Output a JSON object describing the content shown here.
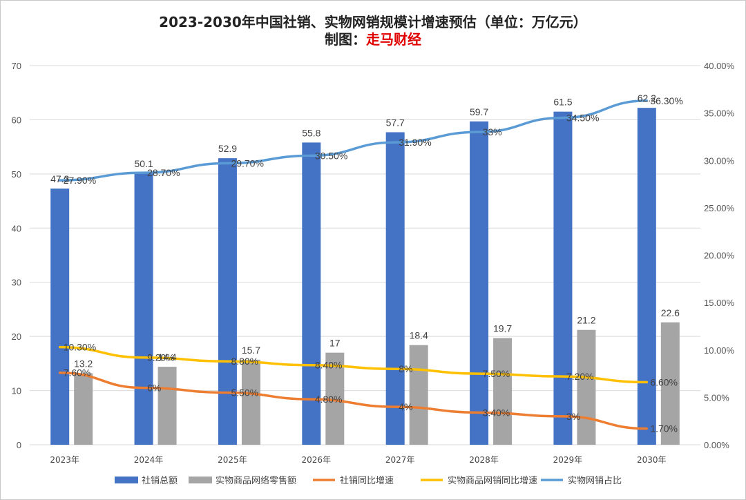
{
  "chart_data": {
    "type": "bar",
    "title": "2023-2030年中国社销、实物网销规模计增速预估（单位：万亿元）",
    "credit_prefix": "制图：",
    "credit_name": "走马财经",
    "categories": [
      "2023年",
      "2024年",
      "2025年",
      "2026年",
      "2027年",
      "2028年",
      "2029年",
      "2030年"
    ],
    "y_left": {
      "ylim": [
        0,
        70
      ],
      "ticks": [
        "0",
        "10",
        "20",
        "30",
        "40",
        "50",
        "60",
        "70"
      ]
    },
    "y_right": {
      "ylim": [
        0,
        40
      ],
      "ticks": [
        "0.00%",
        "5.00%",
        "10.00%",
        "15.00%",
        "20.00%",
        "25.00%",
        "30.00%",
        "35.00%",
        "40.00%"
      ]
    },
    "grid": true,
    "legend_position": "bottom",
    "series": [
      {
        "name": "社销总额",
        "type": "bar",
        "axis": "left",
        "color": "#4472c4",
        "values": [
          47.3,
          50.1,
          52.9,
          55.8,
          57.7,
          59.7,
          61.5,
          62.2
        ],
        "labels": [
          "47.3",
          "50.1",
          "52.9",
          "55.8",
          "57.7",
          "59.7",
          "61.5",
          "62.2"
        ]
      },
      {
        "name": "实物商品网络零售额",
        "type": "bar",
        "axis": "left",
        "color": "#a5a5a5",
        "values": [
          13.2,
          14.4,
          15.7,
          17,
          18.4,
          19.7,
          21.2,
          22.6
        ],
        "labels": [
          "13.2",
          "14.4",
          "15.7",
          "17",
          "18.4",
          "19.7",
          "21.2",
          "22.6"
        ]
      },
      {
        "name": "社销同比增速",
        "type": "line",
        "axis": "right",
        "color": "#ed7d31",
        "values": [
          7.6,
          6,
          5.5,
          4.8,
          4,
          3.4,
          3,
          1.7
        ],
        "labels": [
          "7.60%",
          "6%",
          "5.50%",
          "4.80%",
          "4%",
          "3.40%",
          "3%",
          "1.70%"
        ]
      },
      {
        "name": "实物商品网销同比增速",
        "type": "line",
        "axis": "right",
        "color": "#ffc000",
        "values": [
          10.3,
          9.2,
          8.8,
          8.4,
          8,
          7.5,
          7.2,
          6.6
        ],
        "labels": [
          "10.30%",
          "9.20%",
          "8.80%",
          "8.40%",
          "8%",
          "7.50%",
          "7.20%",
          "6.60%"
        ]
      },
      {
        "name": "实物网销占比",
        "type": "line",
        "axis": "right",
        "color": "#5b9bd5",
        "values": [
          27.9,
          28.7,
          29.7,
          30.5,
          31.9,
          33,
          34.5,
          36.3
        ],
        "labels": [
          "27.90%",
          "28.70%",
          "29.70%",
          "30.50%",
          "31.90%",
          "33%",
          "34.50%",
          "36.30%"
        ]
      }
    ]
  }
}
